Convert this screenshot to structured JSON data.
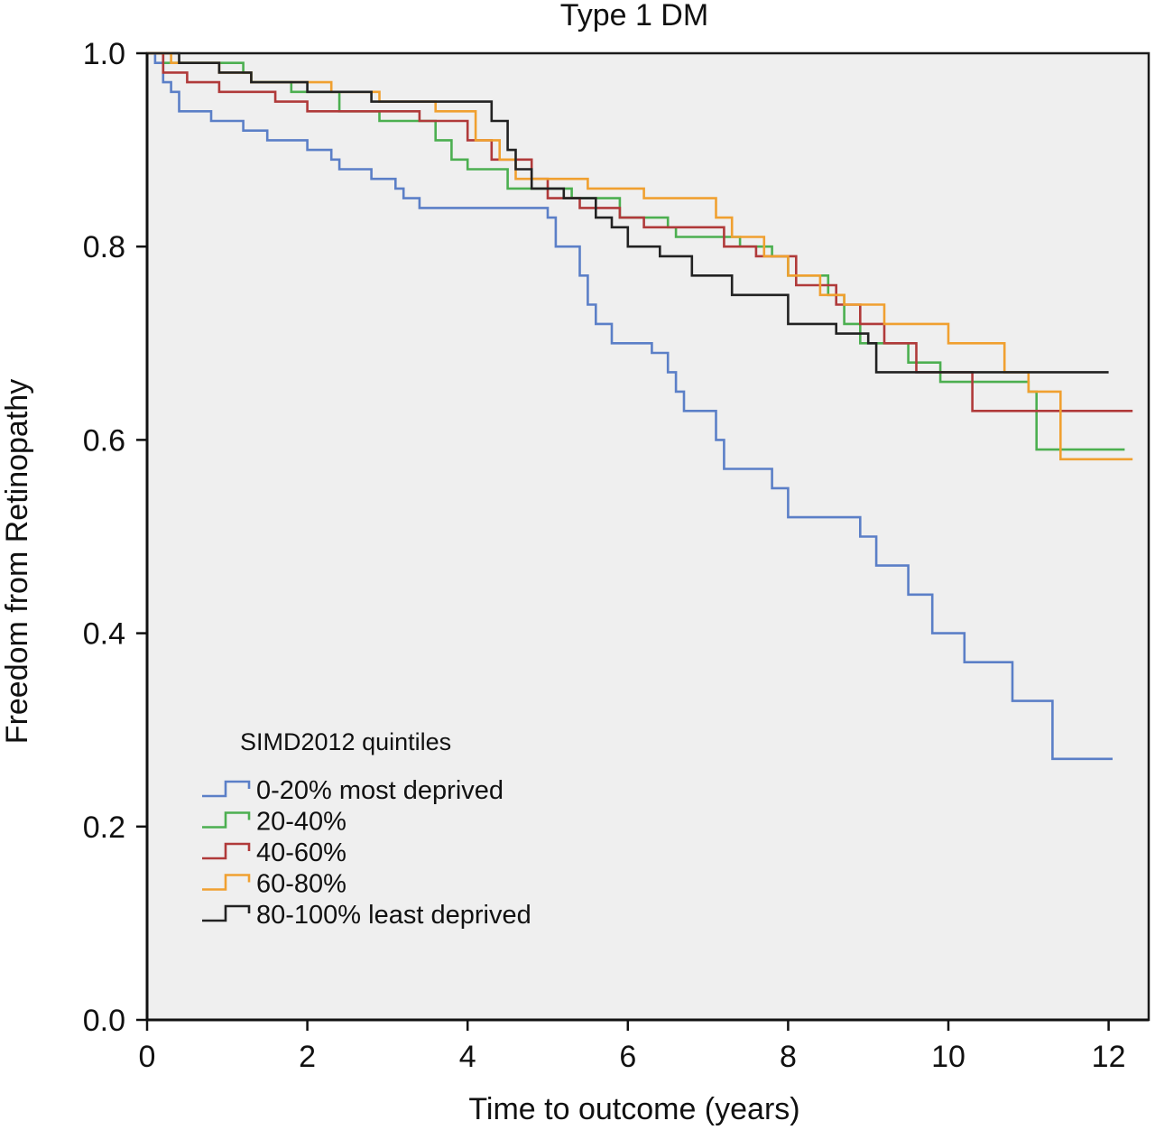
{
  "chart_data": {
    "type": "line",
    "title": "Type 1 DM",
    "xlabel": "Time to outcome (years)",
    "ylabel": "Freedom from Retinopathy",
    "xlim": [
      0,
      12.5
    ],
    "ylim": [
      0,
      1.0
    ],
    "x_ticks": [
      "0",
      "2",
      "4",
      "6",
      "8",
      "10",
      "12"
    ],
    "y_ticks": [
      "0.0",
      "0.2",
      "0.4",
      "0.6",
      "0.8",
      "1.0"
    ],
    "grid": false,
    "plot_background": "#efefef",
    "legend": {
      "title": "SIMD2012 quintiles",
      "placement": "lower-left"
    },
    "series": [
      {
        "name": "0-20% most deprived",
        "color": "#5b7fc7",
        "points": [
          [
            0,
            1.0
          ],
          [
            0.1,
            0.99
          ],
          [
            0.2,
            0.97
          ],
          [
            0.3,
            0.96
          ],
          [
            0.4,
            0.94
          ],
          [
            0.8,
            0.93
          ],
          [
            1.2,
            0.92
          ],
          [
            1.5,
            0.91
          ],
          [
            2.0,
            0.9
          ],
          [
            2.3,
            0.89
          ],
          [
            2.4,
            0.88
          ],
          [
            2.8,
            0.87
          ],
          [
            3.1,
            0.86
          ],
          [
            3.2,
            0.85
          ],
          [
            3.4,
            0.84
          ],
          [
            5.0,
            0.83
          ],
          [
            5.1,
            0.8
          ],
          [
            5.4,
            0.77
          ],
          [
            5.5,
            0.74
          ],
          [
            5.6,
            0.72
          ],
          [
            5.8,
            0.7
          ],
          [
            6.3,
            0.69
          ],
          [
            6.5,
            0.67
          ],
          [
            6.6,
            0.65
          ],
          [
            6.7,
            0.63
          ],
          [
            7.1,
            0.6
          ],
          [
            7.2,
            0.57
          ],
          [
            7.8,
            0.55
          ],
          [
            8.0,
            0.52
          ],
          [
            8.9,
            0.5
          ],
          [
            9.1,
            0.47
          ],
          [
            9.5,
            0.44
          ],
          [
            9.8,
            0.4
          ],
          [
            10.2,
            0.37
          ],
          [
            10.8,
            0.33
          ],
          [
            11.3,
            0.27
          ],
          [
            12.05,
            0.27
          ]
        ]
      },
      {
        "name": "20-40%",
        "color": "#4caf50",
        "points": [
          [
            0,
            1.0
          ],
          [
            0.2,
            0.99
          ],
          [
            1.2,
            0.98
          ],
          [
            1.3,
            0.97
          ],
          [
            1.8,
            0.96
          ],
          [
            2.4,
            0.94
          ],
          [
            2.9,
            0.93
          ],
          [
            3.6,
            0.91
          ],
          [
            3.8,
            0.89
          ],
          [
            4.0,
            0.88
          ],
          [
            4.5,
            0.86
          ],
          [
            5.3,
            0.85
          ],
          [
            5.9,
            0.83
          ],
          [
            6.5,
            0.82
          ],
          [
            6.6,
            0.81
          ],
          [
            7.4,
            0.8
          ],
          [
            7.8,
            0.79
          ],
          [
            8.0,
            0.77
          ],
          [
            8.5,
            0.75
          ],
          [
            8.7,
            0.72
          ],
          [
            8.9,
            0.7
          ],
          [
            9.5,
            0.68
          ],
          [
            9.9,
            0.66
          ],
          [
            11.0,
            0.65
          ],
          [
            11.1,
            0.59
          ],
          [
            12.2,
            0.59
          ]
        ]
      },
      {
        "name": "40-60%",
        "color": "#b03a3a",
        "points": [
          [
            0,
            1.0
          ],
          [
            0.2,
            0.98
          ],
          [
            0.5,
            0.97
          ],
          [
            0.9,
            0.96
          ],
          [
            1.4,
            0.96
          ],
          [
            1.6,
            0.95
          ],
          [
            2.0,
            0.94
          ],
          [
            3.4,
            0.93
          ],
          [
            4.0,
            0.91
          ],
          [
            4.3,
            0.89
          ],
          [
            4.8,
            0.87
          ],
          [
            5.0,
            0.85
          ],
          [
            5.4,
            0.84
          ],
          [
            5.9,
            0.83
          ],
          [
            6.2,
            0.82
          ],
          [
            7.2,
            0.8
          ],
          [
            7.6,
            0.79
          ],
          [
            8.1,
            0.76
          ],
          [
            8.6,
            0.74
          ],
          [
            8.9,
            0.72
          ],
          [
            9.2,
            0.7
          ],
          [
            9.6,
            0.67
          ],
          [
            10.3,
            0.63
          ],
          [
            12.3,
            0.63
          ]
        ]
      },
      {
        "name": "60-80%",
        "color": "#f0a030",
        "points": [
          [
            0,
            1.0
          ],
          [
            0.3,
            0.99
          ],
          [
            0.9,
            0.98
          ],
          [
            1.3,
            0.97
          ],
          [
            2.3,
            0.96
          ],
          [
            2.9,
            0.95
          ],
          [
            3.6,
            0.94
          ],
          [
            4.1,
            0.91
          ],
          [
            4.4,
            0.89
          ],
          [
            4.6,
            0.87
          ],
          [
            5.5,
            0.86
          ],
          [
            6.2,
            0.85
          ],
          [
            7.1,
            0.83
          ],
          [
            7.3,
            0.81
          ],
          [
            7.7,
            0.79
          ],
          [
            8.0,
            0.77
          ],
          [
            8.4,
            0.75
          ],
          [
            8.7,
            0.74
          ],
          [
            9.2,
            0.72
          ],
          [
            10.0,
            0.7
          ],
          [
            10.7,
            0.67
          ],
          [
            11.0,
            0.65
          ],
          [
            11.4,
            0.58
          ],
          [
            12.3,
            0.58
          ]
        ]
      },
      {
        "name": "80-100% least deprived",
        "color": "#222222",
        "points": [
          [
            0,
            1.0
          ],
          [
            0.4,
            0.99
          ],
          [
            0.9,
            0.98
          ],
          [
            1.3,
            0.97
          ],
          [
            2.0,
            0.96
          ],
          [
            2.8,
            0.95
          ],
          [
            4.3,
            0.93
          ],
          [
            4.5,
            0.9
          ],
          [
            4.6,
            0.88
          ],
          [
            4.8,
            0.86
          ],
          [
            5.2,
            0.85
          ],
          [
            5.6,
            0.83
          ],
          [
            5.8,
            0.82
          ],
          [
            6.0,
            0.8
          ],
          [
            6.4,
            0.79
          ],
          [
            6.8,
            0.77
          ],
          [
            7.3,
            0.75
          ],
          [
            8.0,
            0.74
          ],
          [
            8.0,
            0.72
          ],
          [
            8.6,
            0.71
          ],
          [
            9.0,
            0.7
          ],
          [
            9.1,
            0.67
          ],
          [
            12.0,
            0.67
          ]
        ]
      }
    ]
  }
}
